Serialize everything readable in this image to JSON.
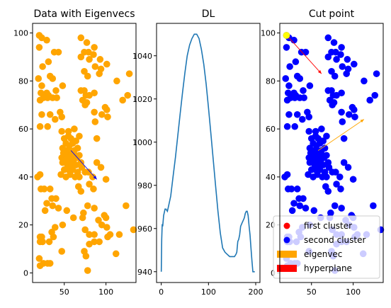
{
  "figure": {
    "background": "#ffffff"
  },
  "chart_data": [
    {
      "type": "scatter",
      "title": "Data with Eigenvecs",
      "xlabel": "",
      "ylabel": "",
      "xlim": [
        12,
        136
      ],
      "ylim": [
        -4,
        104
      ],
      "xticks": [
        50,
        100
      ],
      "yticks": [
        0,
        20,
        40,
        60,
        80,
        100
      ],
      "grid": false,
      "point_color": "#ffa500",
      "points": [
        [
          20,
          99
        ],
        [
          23,
          98
        ],
        [
          29,
          97
        ],
        [
          20,
          94
        ],
        [
          38,
          92
        ],
        [
          43,
          92
        ],
        [
          31,
          88
        ],
        [
          24,
          86
        ],
        [
          33,
          82
        ],
        [
          36,
          81
        ],
        [
          19,
          81
        ],
        [
          23,
          78
        ],
        [
          22,
          75
        ],
        [
          29,
          75
        ],
        [
          31,
          74
        ],
        [
          21,
          72
        ],
        [
          25,
          73
        ],
        [
          30,
          73
        ],
        [
          36,
          73
        ],
        [
          41,
          73
        ],
        [
          40,
          76
        ],
        [
          48,
          78
        ],
        [
          23,
          66
        ],
        [
          21,
          61
        ],
        [
          33,
          66
        ],
        [
          39,
          64
        ],
        [
          45,
          67
        ],
        [
          47,
          65
        ],
        [
          30,
          61
        ],
        [
          70,
          98
        ],
        [
          77,
          96
        ],
        [
          86,
          94
        ],
        [
          74,
          92
        ],
        [
          79,
          92
        ],
        [
          85,
          91
        ],
        [
          70,
          90
        ],
        [
          80,
          89
        ],
        [
          93,
          89
        ],
        [
          101,
          87
        ],
        [
          94,
          85
        ],
        [
          92,
          83
        ],
        [
          74,
          84
        ],
        [
          87,
          86
        ],
        [
          78,
          82
        ],
        [
          113,
          80
        ],
        [
          128,
          83
        ],
        [
          126,
          74
        ],
        [
          120,
          72
        ],
        [
          70,
          76
        ],
        [
          74,
          76
        ],
        [
          76,
          74
        ],
        [
          72,
          72
        ],
        [
          77,
          71
        ],
        [
          75,
          70
        ],
        [
          80,
          74
        ],
        [
          86,
          75
        ],
        [
          86,
          67
        ],
        [
          99,
          69
        ],
        [
          101,
          68
        ],
        [
          95,
          66
        ],
        [
          102,
          65
        ],
        [
          87,
          63
        ],
        [
          89,
          56
        ],
        [
          50,
          56
        ],
        [
          55,
          57
        ],
        [
          58,
          56
        ],
        [
          52,
          54
        ],
        [
          56,
          53
        ],
        [
          60,
          54
        ],
        [
          64,
          55
        ],
        [
          48,
          52
        ],
        [
          51,
          51
        ],
        [
          57,
          51
        ],
        [
          62,
          51
        ],
        [
          66,
          52
        ],
        [
          49,
          50
        ],
        [
          53,
          49
        ],
        [
          58,
          49
        ],
        [
          63,
          49
        ],
        [
          68,
          49
        ],
        [
          47,
          48
        ],
        [
          52,
          47
        ],
        [
          56,
          47
        ],
        [
          61,
          47
        ],
        [
          65,
          48
        ],
        [
          48,
          46
        ],
        [
          54,
          45
        ],
        [
          59,
          45
        ],
        [
          64,
          45
        ],
        [
          70,
          46
        ],
        [
          50,
          43
        ],
        [
          55,
          43
        ],
        [
          60,
          43
        ],
        [
          66,
          42
        ],
        [
          71,
          44
        ],
        [
          46,
          41
        ],
        [
          52,
          40
        ],
        [
          57,
          41
        ],
        [
          63,
          40
        ],
        [
          68,
          40
        ],
        [
          75,
          42
        ],
        [
          79,
          42
        ],
        [
          84,
          40
        ],
        [
          89,
          46
        ],
        [
          94,
          44
        ],
        [
          62,
          60
        ],
        [
          55,
          59
        ],
        [
          47,
          59
        ],
        [
          68,
          57
        ],
        [
          18,
          40
        ],
        [
          21,
          41
        ],
        [
          22,
          35
        ],
        [
          26,
          35
        ],
        [
          33,
          35
        ],
        [
          35,
          31
        ],
        [
          40,
          31
        ],
        [
          29,
          29
        ],
        [
          27,
          26
        ],
        [
          36,
          28
        ],
        [
          43,
          27
        ],
        [
          53,
          26
        ],
        [
          61,
          23
        ],
        [
          39,
          19
        ],
        [
          48,
          20
        ],
        [
          22,
          14
        ],
        [
          21,
          13
        ],
        [
          24,
          13
        ],
        [
          37,
          15
        ],
        [
          32,
          13
        ],
        [
          20,
          6
        ],
        [
          25,
          4
        ],
        [
          21,
          3
        ],
        [
          30,
          4
        ],
        [
          33,
          4
        ],
        [
          47,
          9
        ],
        [
          35,
          17
        ],
        [
          21,
          15
        ],
        [
          23,
          15
        ],
        [
          67,
          36
        ],
        [
          70,
          34
        ],
        [
          80,
          37
        ],
        [
          85,
          35
        ],
        [
          100,
          39
        ],
        [
          78,
          28
        ],
        [
          72,
          23
        ],
        [
          73,
          25
        ],
        [
          86,
          27
        ],
        [
          91,
          22
        ],
        [
          98,
          24
        ],
        [
          100,
          23
        ],
        [
          75,
          18
        ],
        [
          80,
          16
        ],
        [
          86,
          16
        ],
        [
          92,
          13
        ],
        [
          95,
          20
        ],
        [
          102,
          15
        ],
        [
          105,
          16
        ],
        [
          116,
          16
        ],
        [
          124,
          28
        ],
        [
          133,
          18
        ],
        [
          80,
          12
        ],
        [
          86,
          13
        ],
        [
          74,
          9
        ],
        [
          76,
          7
        ],
        [
          112,
          8
        ],
        [
          78,
          1
        ],
        [
          101,
          19
        ]
      ],
      "arrows": [
        {
          "color": "#0000ff",
          "from": [
            58,
            51
          ],
          "to": [
            89,
            39
          ]
        }
      ]
    },
    {
      "type": "line",
      "title": "DL",
      "xlabel": "",
      "ylabel": "",
      "xlim": [
        -10,
        209
      ],
      "ylim": [
        935,
        1055
      ],
      "xticks": [
        0,
        100,
        200
      ],
      "yticks": [
        940,
        960,
        980,
        1000,
        1020,
        1040
      ],
      "grid": false,
      "line_color": "#1f77b4",
      "x": [
        0,
        1,
        2,
        3,
        5,
        8,
        10,
        13,
        15,
        20,
        25,
        30,
        35,
        40,
        45,
        50,
        55,
        60,
        65,
        70,
        75,
        80,
        85,
        90,
        95,
        100,
        105,
        110,
        115,
        120,
        125,
        130,
        135,
        140,
        145,
        150,
        155,
        158,
        160,
        162,
        164,
        166,
        168,
        170,
        172,
        174,
        176,
        178,
        180,
        182,
        184,
        186,
        188,
        190,
        192,
        194,
        196,
        198
      ],
      "y": [
        940,
        948,
        962,
        960,
        967,
        969,
        970,
        968,
        970,
        975,
        984,
        993,
        1003,
        1014,
        1024,
        1034,
        1041,
        1046,
        1049,
        1050.5,
        1050,
        1048,
        1043,
        1036,
        1027,
        1016,
        1004,
        992,
        980,
        968,
        958,
        951,
        952,
        955,
        958,
        960,
        962,
        963,
        964,
        960,
        957,
        954,
        958,
        961,
        963,
        964,
        966,
        967,
        968,
        968,
        965,
        966,
        967,
        966,
        958,
        948,
        940,
        940
      ],
      "curve_x": [
        0,
        1,
        2,
        3,
        5,
        8,
        10,
        13,
        15,
        20,
        25,
        30,
        35,
        40,
        45,
        50,
        55,
        60,
        65,
        70,
        75,
        80,
        85,
        90,
        95,
        100,
        105,
        110,
        115,
        120,
        125,
        130,
        135,
        140,
        145,
        150,
        155,
        158,
        160,
        162,
        164,
        166,
        168,
        170,
        172,
        174,
        176,
        178,
        180,
        182,
        184,
        186,
        188,
        190,
        192,
        194,
        196,
        198
      ],
      "curve_y": [
        940,
        955,
        962,
        961,
        966,
        969,
        969,
        968,
        970,
        975,
        984,
        993,
        1003,
        1013,
        1023,
        1032,
        1040,
        1045,
        1048,
        1050,
        1050,
        1048,
        1043,
        1036,
        1027,
        1016,
        1004,
        992,
        980,
        968,
        958,
        951,
        949,
        948,
        947,
        947,
        947,
        948,
        949,
        954,
        955,
        957,
        961,
        962,
        963,
        964,
        965,
        967,
        968,
        968,
        966,
        961,
        957,
        951,
        945,
        940,
        940,
        940
      ]
    },
    {
      "type": "scatter",
      "title": "Cut point",
      "xlabel": "",
      "ylabel": "",
      "xlim": [
        12,
        136
      ],
      "ylim": [
        -4,
        104
      ],
      "xticks": [
        50,
        100
      ],
      "yticks": [
        0,
        20,
        40,
        60,
        80,
        100
      ],
      "grid": false,
      "point_color": "#0000ff",
      "highlight_point": {
        "x": 20,
        "y": 99,
        "color": "#ffff00"
      },
      "arrows": [
        {
          "color": "#ffa500",
          "from": [
            58,
            51
          ],
          "to": [
            113,
            64
          ]
        },
        {
          "color": "#ff0000",
          "from": [
            23,
            98
          ],
          "to": [
            62,
            83
          ]
        }
      ],
      "legend": {
        "placement": "lower-right",
        "entries": [
          {
            "label": "first cluster",
            "marker": "dot",
            "color": "#ff0000"
          },
          {
            "label": "second cluster",
            "marker": "dot",
            "color": "#0000ff"
          },
          {
            "label": "eigenvec",
            "marker": "patch",
            "color": "#ffa500"
          },
          {
            "label": "hyperplane",
            "marker": "patch",
            "color": "#ff0000"
          }
        ]
      }
    }
  ]
}
